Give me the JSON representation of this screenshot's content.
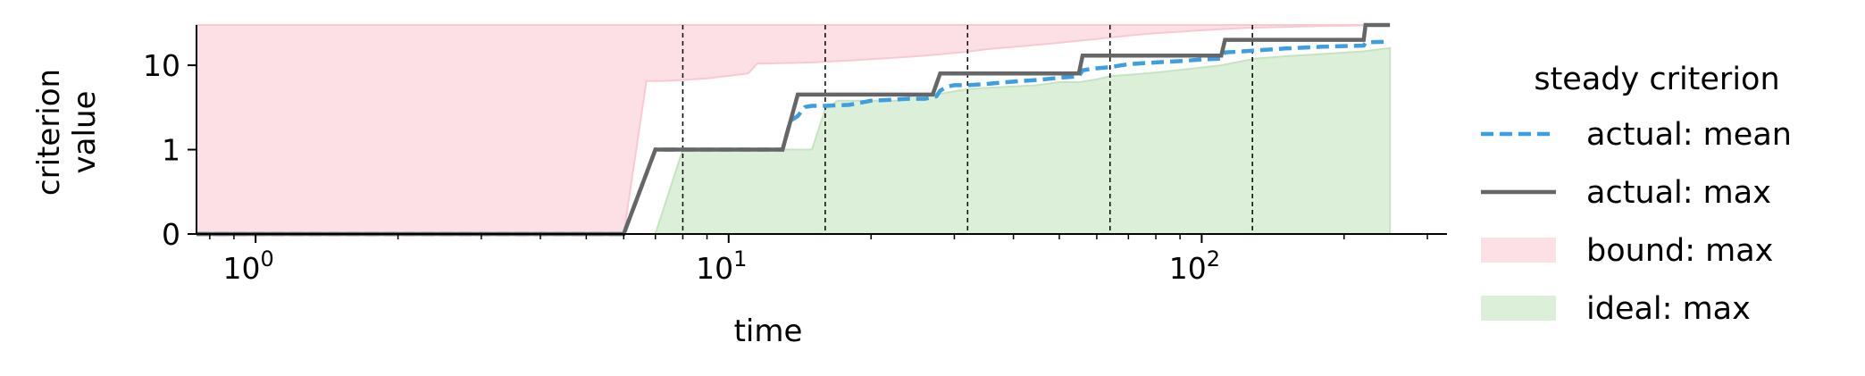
{
  "chart_data": {
    "type": "line",
    "xlabel": "time",
    "ylabel_lines": [
      "criterion",
      "value"
    ],
    "x_scale": "log",
    "xlim": [
      0.75,
      330
    ],
    "ylim": [
      0,
      30
    ],
    "x_major_ticks": [
      1,
      10,
      100
    ],
    "x_tick_labels": [
      {
        "base": "10",
        "exp": "0"
      },
      {
        "base": "10",
        "exp": "1"
      },
      {
        "base": "10",
        "exp": "2"
      }
    ],
    "y_ticks": [
      0,
      1,
      10
    ],
    "y_tick_labels": [
      "0",
      "1",
      "10"
    ],
    "vlines": [
      8,
      16,
      32,
      64,
      128
    ],
    "legend": {
      "title": "steady criterion",
      "placement": "right",
      "entries": [
        {
          "label": "actual: mean",
          "style": "dashed",
          "color": "#3d9fe3"
        },
        {
          "label": "actual: max",
          "style": "solid",
          "color": "#666666"
        },
        {
          "label": "bound: max",
          "style": "patch",
          "color": "#fde0e6"
        },
        {
          "label": "ideal: max",
          "style": "patch",
          "color": "#dcefd8"
        }
      ]
    },
    "series": [
      {
        "name": "bound: max",
        "kind": "area",
        "color": "#fde0e6",
        "edge": "#f9c8d3",
        "x": [
          0.75,
          6,
          6.7,
          7.2,
          8,
          9,
          10,
          11,
          11.5,
          12,
          13,
          14,
          15,
          16,
          17,
          18,
          20,
          22,
          24,
          26,
          28,
          30,
          32,
          35,
          40,
          45,
          50,
          55,
          60,
          65,
          70,
          75,
          80,
          90,
          100,
          110,
          120,
          150,
          180,
          220,
          250
        ],
        "lower": [
          0,
          0,
          6.5,
          6.5,
          6.7,
          7,
          7.5,
          8,
          10.5,
          10.5,
          10.6,
          10.7,
          10.8,
          11,
          11.2,
          11.4,
          11.8,
          12.2,
          12.6,
          13,
          13.5,
          14,
          14.5,
          15.5,
          16.5,
          17.5,
          18.5,
          19.5,
          20.5,
          21.5,
          22.5,
          23.3,
          24,
          25,
          26,
          26.8,
          27.5,
          28.5,
          29.2,
          29.7,
          30
        ],
        "upper": 30
      },
      {
        "name": "ideal: max",
        "kind": "area",
        "color": "#dcefd8",
        "edge": "#c5e4bf",
        "x": [
          0.75,
          7,
          8,
          8.5,
          13,
          15,
          16,
          17,
          23,
          25,
          28,
          32,
          35,
          45,
          50,
          55,
          60,
          64,
          70,
          80,
          90,
          100,
          110,
          120,
          130,
          150,
          180,
          220,
          250
        ],
        "values": [
          0,
          0,
          1,
          1,
          1,
          1,
          3,
          3.8,
          3.8,
          4.6,
          4.6,
          5.2,
          5.4,
          5.8,
          6.3,
          6.3,
          6.8,
          7.4,
          7.7,
          8.2,
          8.8,
          9.4,
          10,
          11,
          12,
          12.8,
          13.6,
          14.6,
          16
        ]
      },
      {
        "name": "actual: mean",
        "kind": "line",
        "style": "dashed",
        "color": "#3d9fe3",
        "x": [
          0.75,
          6,
          7,
          8,
          13,
          13.5,
          14,
          14.5,
          15,
          16,
          18,
          20,
          22,
          24,
          26,
          27.5,
          28,
          29,
          30,
          32,
          35,
          40,
          45,
          50,
          55,
          56,
          58,
          60,
          64,
          70,
          80,
          90,
          100,
          110,
          112,
          120,
          130,
          150,
          180,
          220,
          222,
          230,
          250
        ],
        "values": [
          0,
          0,
          1,
          1,
          1,
          2.2,
          2.5,
          3.2,
          3.3,
          3.3,
          3.4,
          3.8,
          3.9,
          4.0,
          4.0,
          4.3,
          5.0,
          5.6,
          5.8,
          5.8,
          6.0,
          6.4,
          6.7,
          7.1,
          7.4,
          8.7,
          9.0,
          9.2,
          9.5,
          10.3,
          10.8,
          11.2,
          11.7,
          12.0,
          14.2,
          14.5,
          15.0,
          15.8,
          16.6,
          17.1,
          18.5,
          18.8,
          19
        ]
      },
      {
        "name": "actual: max",
        "kind": "line",
        "style": "solid",
        "color": "#666666",
        "x": [
          0.75,
          6,
          7,
          13,
          14,
          27,
          28,
          55,
          56,
          110,
          112,
          220,
          222,
          250
        ],
        "values": [
          0,
          0,
          1,
          1,
          4.5,
          4.5,
          8,
          8,
          13,
          13,
          20,
          20,
          30,
          30
        ]
      }
    ]
  }
}
